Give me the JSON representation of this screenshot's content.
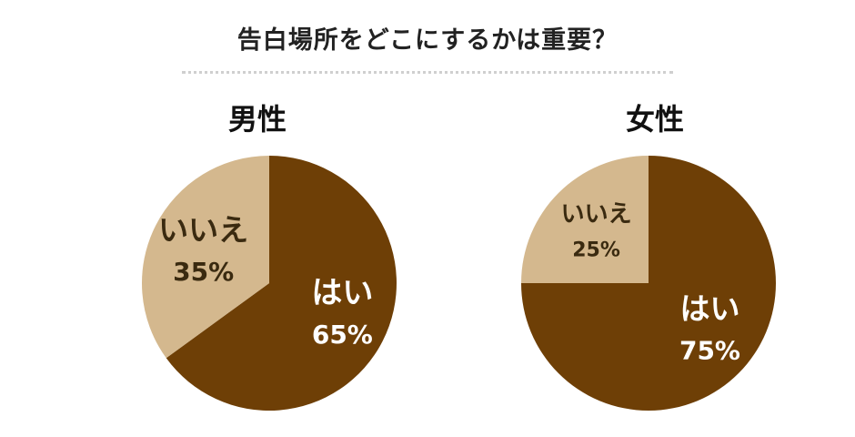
{
  "title": "告白場所をどこにするかは重要？",
  "colors": {
    "yes": "#6e3f06",
    "no": "#d4b88e",
    "text_dark": "#111111",
    "text_on_dark": "#ffffff",
    "text_on_light": "#3a2a10"
  },
  "chart_data": [
    {
      "type": "pie",
      "title": "男性",
      "slices": [
        {
          "label": "はい",
          "value": 65,
          "value_label": "65%"
        },
        {
          "label": "いいえ",
          "value": 35,
          "value_label": "35%"
        }
      ]
    },
    {
      "type": "pie",
      "title": "女性",
      "slices": [
        {
          "label": "はい",
          "value": 75,
          "value_label": "75%"
        },
        {
          "label": "いいえ",
          "value": 25,
          "value_label": "25%"
        }
      ]
    }
  ]
}
